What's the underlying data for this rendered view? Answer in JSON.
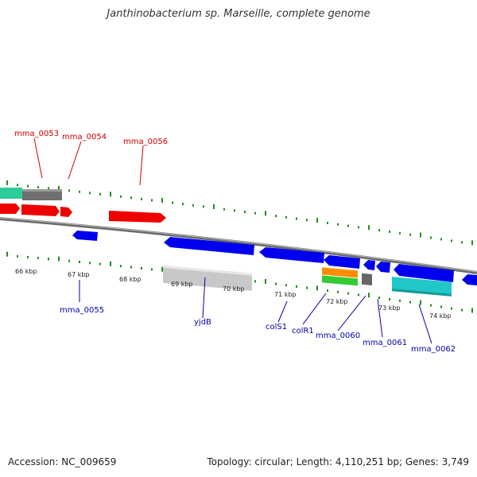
{
  "title": "Janthinobacterium sp. Marseille, complete genome",
  "footer": {
    "accession": "Accession: NC_009659",
    "summary": "Topology: circular; Length: 4,110,251 bp; Genes: 3,749"
  },
  "kbp_labels": [
    "66 kbp",
    "67 kbp",
    "68 kbp",
    "69 kbp",
    "70 kbp",
    "71 kbp",
    "72 kbp",
    "73 kbp",
    "74 kbp"
  ],
  "gene_labels_top": [
    "mma_0053",
    "mma_0054",
    "mma_0056"
  ],
  "gene_labels_bottom": [
    "mma_0055",
    "yjdB",
    "colS1",
    "colR1",
    "mma_0060",
    "mma_0061",
    "mma_0062"
  ],
  "colors": {
    "forward_cds": "#ff0000",
    "reverse_cds": "#0000ee",
    "backbone": "#888888",
    "tick": "#228b22",
    "rna_green": "#2ecc9a",
    "grey_feature": "#777777",
    "light_grey_feature": "#c8c8c8",
    "orange_feature": "#ff8c00",
    "green_feature": "#33cc33",
    "cyan_feature": "#22c8c8"
  }
}
